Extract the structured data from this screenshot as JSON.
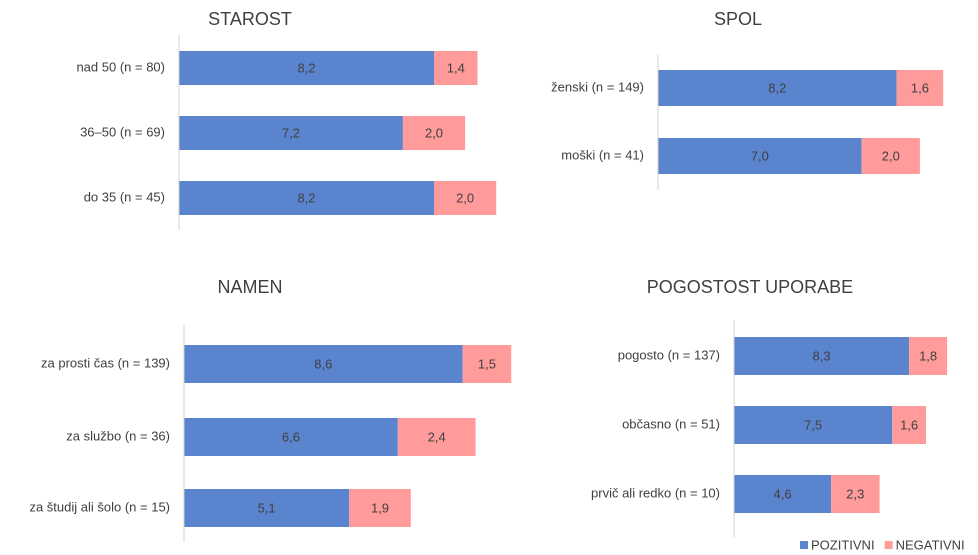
{
  "chart_data": [
    {
      "type": "bar",
      "orientation": "horizontal",
      "stacked": true,
      "title": "STAROST",
      "categories": [
        "nad 50 (n = 80)",
        "36–50 (n = 69)",
        "do 35 (n = 45)"
      ],
      "series": [
        {
          "values": [
            8.2,
            7.2,
            8.2
          ],
          "value_labels": [
            "8,2",
            "7,2",
            "8,2"
          ]
        },
        {
          "values": [
            1.4,
            2.0,
            2.0
          ],
          "value_labels": [
            "1,4",
            "2,0",
            "2,0"
          ]
        }
      ]
    },
    {
      "type": "bar",
      "orientation": "horizontal",
      "stacked": true,
      "title": "SPOL",
      "categories": [
        "ženski (n = 149)",
        "moški (n = 41)"
      ],
      "series": [
        {
          "values": [
            8.2,
            7.0
          ],
          "value_labels": [
            "8,2",
            "7,0"
          ]
        },
        {
          "values": [
            1.6,
            2.0
          ],
          "value_labels": [
            "1,6",
            "2,0"
          ]
        }
      ]
    },
    {
      "type": "bar",
      "orientation": "horizontal",
      "stacked": true,
      "title": "NAMEN",
      "categories": [
        "za prosti čas (n = 139)",
        "za službo (n = 36)",
        "za študij ali šolo (n = 15)"
      ],
      "series": [
        {
          "values": [
            8.6,
            6.6,
            5.1
          ],
          "value_labels": [
            "8,6",
            "6,6",
            "5,1"
          ]
        },
        {
          "values": [
            1.5,
            2.4,
            1.9
          ],
          "value_labels": [
            "1,5",
            "2,4",
            "1,9"
          ]
        }
      ]
    },
    {
      "type": "bar",
      "orientation": "horizontal",
      "stacked": true,
      "title": "POGOSTOST UPORABE",
      "categories": [
        "pogosto (n = 137)",
        "občasno (n = 51)",
        "prvič ali redko (n = 10)"
      ],
      "series": [
        {
          "values": [
            8.3,
            7.5,
            4.6
          ],
          "value_labels": [
            "8,3",
            "7,5",
            "4,6"
          ]
        },
        {
          "values": [
            1.8,
            1.6,
            2.3
          ],
          "value_labels": [
            "1,8",
            "1,6",
            "2,3"
          ]
        }
      ]
    }
  ],
  "legend": {
    "position": "bottom-right",
    "items": [
      {
        "name": "POZITIVNI",
        "color": "#5b84cf"
      },
      {
        "name": "NEGATIVNI",
        "color": "#ff9b9b"
      }
    ]
  }
}
